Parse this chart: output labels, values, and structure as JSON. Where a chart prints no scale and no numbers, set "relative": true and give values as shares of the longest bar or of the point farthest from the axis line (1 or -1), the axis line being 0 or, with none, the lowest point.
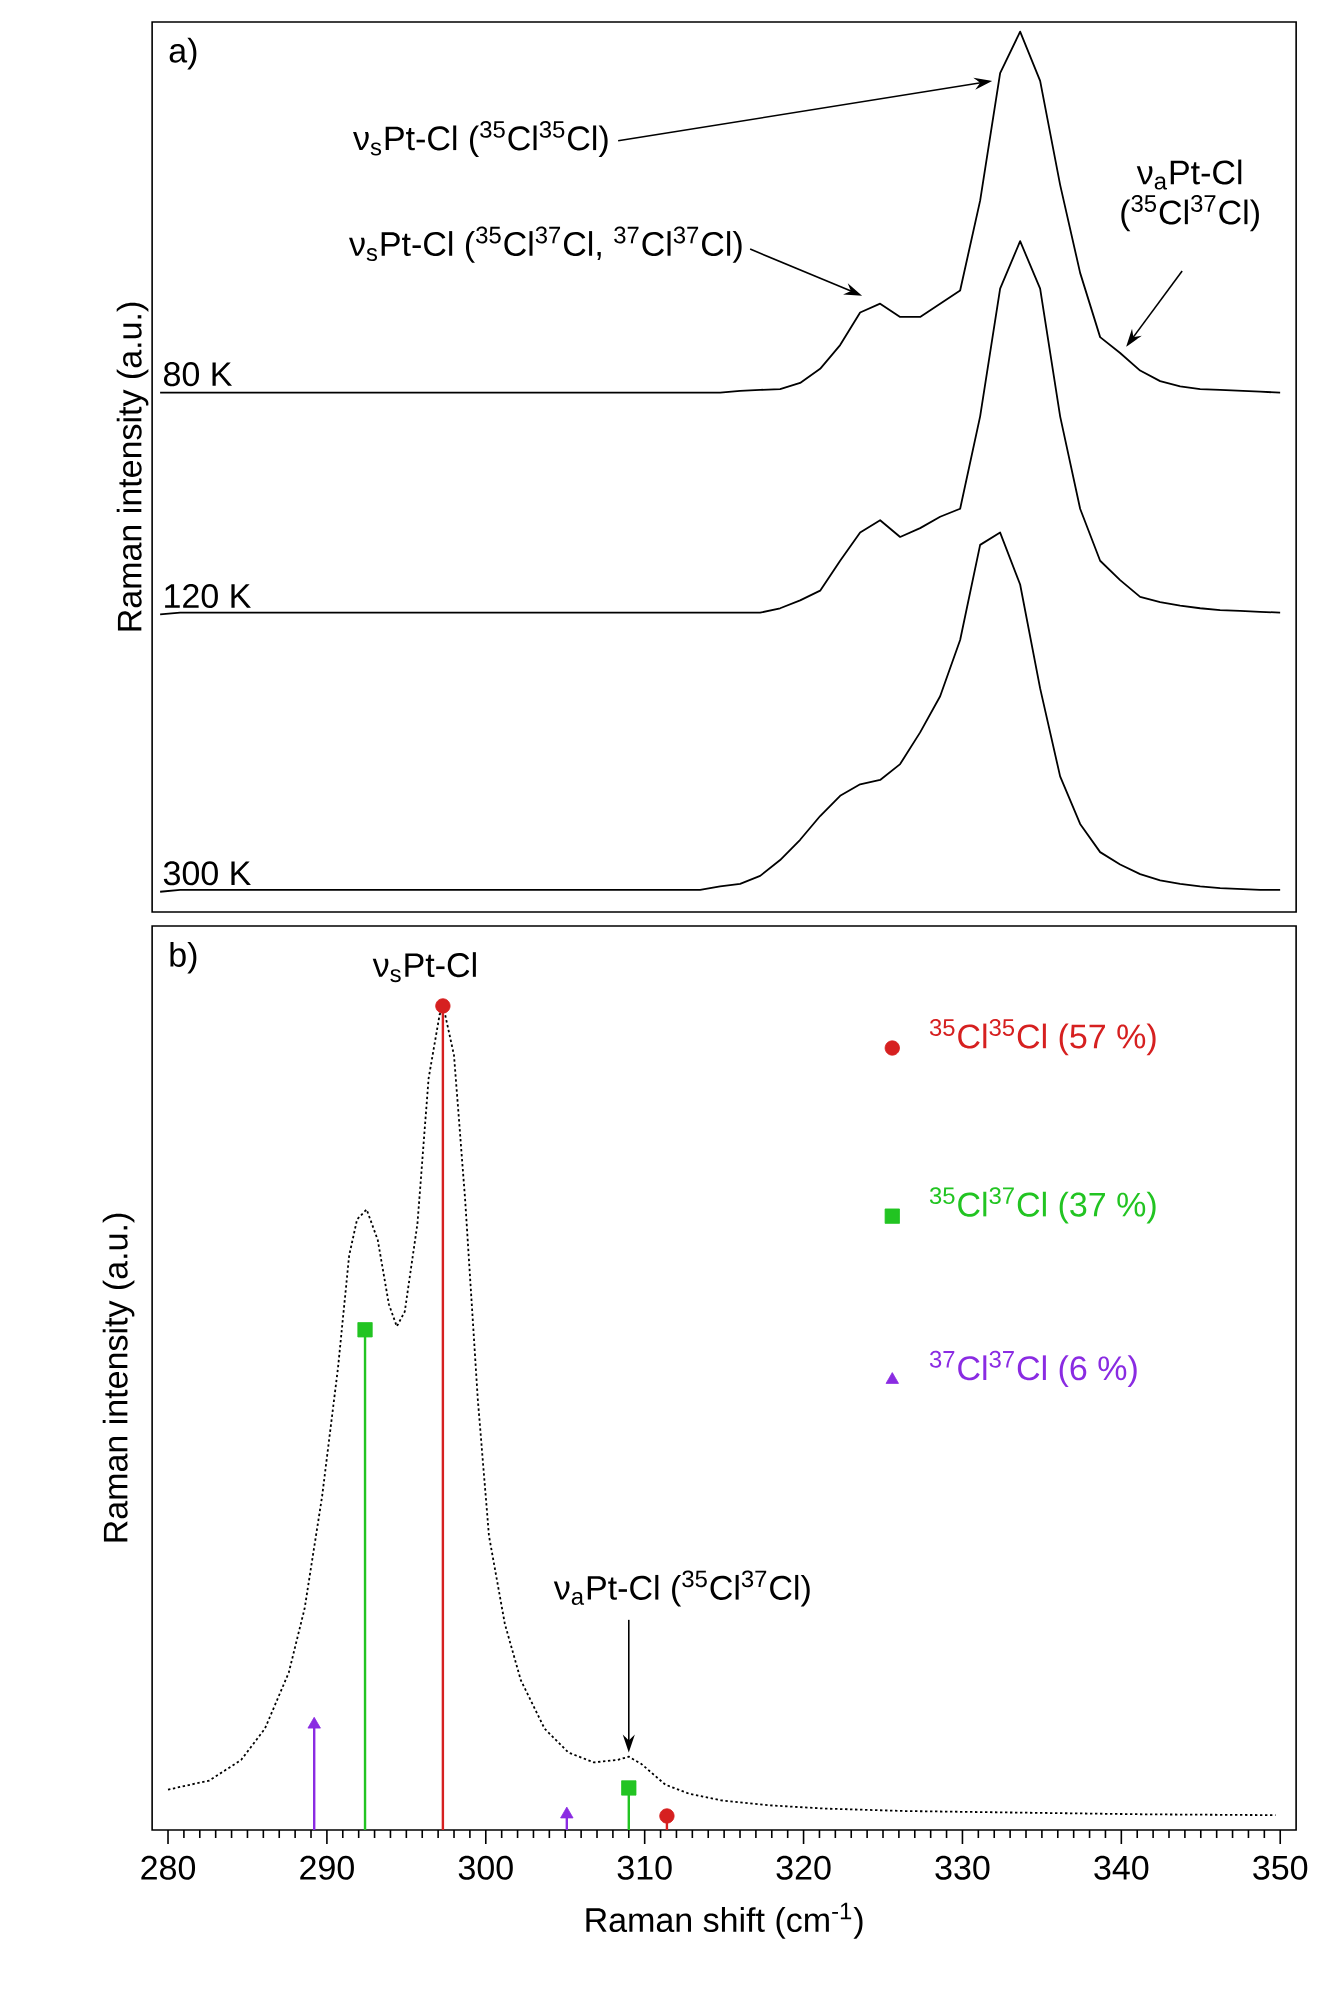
{
  "chart_data": [
    {
      "type": "line",
      "relative": true,
      "tick_labels": false,
      "ylabel": "Raman intensity (a.u.)",
      "categories": [
        null,
        null,
        null,
        null,
        null,
        null,
        null,
        null,
        null,
        null,
        null,
        null,
        null,
        null,
        null,
        null,
        null,
        null,
        null,
        null,
        null,
        null,
        null,
        null,
        null,
        null,
        null,
        null,
        null,
        null,
        null,
        null,
        null,
        null,
        null,
        null,
        null,
        null,
        null,
        null,
        null,
        null,
        null,
        null,
        null,
        null,
        null,
        null,
        null,
        null,
        null,
        null,
        null,
        null,
        null,
        null,
        null
      ],
      "series": [
        {
          "name": "80 K",
          "color": "#000000",
          "values": [
            0.59,
            0.59,
            0.59,
            0.59,
            0.59,
            0.59,
            0.59,
            0.59,
            0.59,
            0.59,
            0.59,
            0.59,
            0.59,
            0.59,
            0.59,
            0.59,
            0.59,
            0.59,
            0.59,
            0.59,
            0.59,
            0.59,
            0.59,
            0.59,
            0.59,
            0.59,
            0.59,
            0.59,
            0.59,
            0.592,
            0.593,
            0.594,
            0.601,
            0.617,
            0.644,
            0.681,
            0.691,
            0.676,
            0.676,
            0.691,
            0.706,
            0.808,
            0.953,
            1.0,
            0.944,
            0.826,
            0.726,
            0.653,
            0.635,
            0.615,
            0.603,
            0.597,
            0.594,
            0.593,
            0.592,
            0.591,
            0.59
          ]
        },
        {
          "name": "120 K",
          "color": "#000000",
          "values": [
            0.338,
            0.34,
            0.34,
            0.34,
            0.34,
            0.34,
            0.34,
            0.34,
            0.34,
            0.34,
            0.34,
            0.34,
            0.34,
            0.34,
            0.34,
            0.34,
            0.34,
            0.34,
            0.34,
            0.34,
            0.34,
            0.34,
            0.34,
            0.34,
            0.34,
            0.34,
            0.34,
            0.34,
            0.34,
            0.34,
            0.34,
            0.345,
            0.354,
            0.365,
            0.399,
            0.431,
            0.445,
            0.426,
            0.436,
            0.449,
            0.458,
            0.563,
            0.708,
            0.762,
            0.708,
            0.563,
            0.458,
            0.399,
            0.377,
            0.358,
            0.352,
            0.348,
            0.345,
            0.343,
            0.342,
            0.341,
            0.34
          ]
        },
        {
          "name": "300 K",
          "color": "#000000",
          "values": [
            0.023,
            0.025,
            0.025,
            0.025,
            0.025,
            0.025,
            0.025,
            0.025,
            0.025,
            0.025,
            0.025,
            0.025,
            0.025,
            0.025,
            0.025,
            0.025,
            0.025,
            0.025,
            0.025,
            0.025,
            0.025,
            0.025,
            0.025,
            0.025,
            0.025,
            0.025,
            0.025,
            0.025,
            0.029,
            0.032,
            0.041,
            0.059,
            0.082,
            0.109,
            0.132,
            0.145,
            0.15,
            0.168,
            0.204,
            0.245,
            0.309,
            0.417,
            0.431,
            0.372,
            0.254,
            0.154,
            0.1,
            0.068,
            0.054,
            0.043,
            0.036,
            0.032,
            0.029,
            0.027,
            0.026,
            0.025,
            0.025
          ]
        }
      ],
      "annotations": [
        "a)",
        "ν$_{s}$Pt-Cl ($^{35}$Cl$^{35}$Cl)",
        "ν$_{s}$Pt-Cl ($^{35}$Cl$^{37}$Cl, $^{37}$Cl$^{37}$Cl)",
        "ν$_{a}$Pt-Cl ($^{35}$Cl$^{37}$Cl)"
      ]
    },
    {
      "type": "lollipop",
      "relative": true,
      "tick_labels": "x",
      "legend": "top right",
      "xlabel": "Raman shift (cm$^{-1}$)",
      "ylabel": "Raman intensity (a.u.)",
      "xlim": [
        279,
        351
      ],
      "xticks": [
        280,
        290,
        300,
        310,
        320,
        330,
        340,
        350
      ],
      "series": [
        {
          "type": "line",
          "color": "#000000",
          "line_style": "dotted",
          "marker": "none",
          "x": [
            280,
            282.6,
            284.6,
            286.1,
            287.6,
            288.6,
            289.7,
            290.7,
            291.4,
            291.9,
            292.5,
            293.2,
            293.9,
            294.4,
            294.9,
            295.7,
            296.4,
            297.1,
            297.4,
            298.0,
            298.7,
            299.5,
            300.2,
            301.2,
            302.2,
            303.7,
            305.2,
            306.8,
            308.3,
            309.0,
            309.8,
            311.3,
            312.8,
            314.8,
            317.8,
            321.3,
            326.4,
            333.9,
            341.5,
            349.7
          ],
          "values": [
            0.049,
            0.06,
            0.085,
            0.123,
            0.191,
            0.269,
            0.405,
            0.561,
            0.697,
            0.741,
            0.753,
            0.716,
            0.638,
            0.611,
            0.629,
            0.736,
            0.912,
            0.99,
            0.993,
            0.94,
            0.765,
            0.522,
            0.357,
            0.25,
            0.182,
            0.123,
            0.094,
            0.082,
            0.085,
            0.089,
            0.08,
            0.055,
            0.044,
            0.036,
            0.03,
            0.026,
            0.023,
            0.021,
            0.019,
            0.018
          ]
        },
        {
          "name": "$^{35}$Cl$^{35}$Cl (57 %)",
          "color": "#d62020",
          "marker": "circle",
          "x": [
            297.3,
            311.4
          ],
          "values": [
            1.0,
            0.017
          ]
        },
        {
          "name": "$^{35}$Cl$^{37}$Cl (37 %)",
          "color": "#22c422",
          "marker": "square",
          "x": [
            292.4,
            309.0
          ],
          "values": [
            0.607,
            0.051
          ]
        },
        {
          "name": "$^{37}$Cl$^{37}$Cl (6 %)",
          "color": "#8a2be2",
          "marker": "triangle",
          "x": [
            289.2,
            305.1
          ],
          "values": [
            0.128,
            0.019
          ]
        }
      ],
      "annotations": [
        "b)",
        "ν$_{s}$Pt-Cl",
        "ν$_{a}$Pt-Cl ($^{35}$Cl$^{37}$Cl)"
      ]
    }
  ]
}
